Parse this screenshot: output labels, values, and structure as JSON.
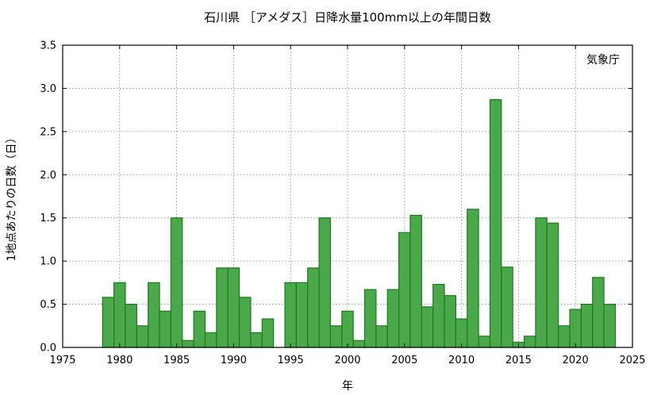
{
  "chart_data": {
    "type": "bar",
    "title": "石川県 ［アメダス］日降水量100mm以上の年間日数",
    "xlabel": "年",
    "ylabel": "1地点あたりの日数（日）",
    "credit": "気象庁",
    "xlim": [
      1975,
      2025
    ],
    "ylim": [
      0,
      3.5
    ],
    "xticks": [
      1975,
      1980,
      1985,
      1990,
      1995,
      2000,
      2005,
      2010,
      2015,
      2020,
      2025
    ],
    "yticks": [
      "0.0",
      "0.5",
      "1.0",
      "1.5",
      "2.0",
      "2.5",
      "3.0",
      "3.5"
    ],
    "grid": true,
    "x": [
      1979,
      1980,
      1981,
      1982,
      1983,
      1984,
      1985,
      1986,
      1987,
      1988,
      1989,
      1990,
      1991,
      1992,
      1993,
      1994,
      1995,
      1996,
      1997,
      1998,
      1999,
      2000,
      2001,
      2002,
      2003,
      2004,
      2005,
      2006,
      2007,
      2008,
      2009,
      2010,
      2011,
      2012,
      2013,
      2014,
      2015,
      2016,
      2017,
      2018,
      2019,
      2020,
      2021,
      2022,
      2023
    ],
    "values": [
      0.58,
      0.75,
      0.5,
      0.25,
      0.75,
      0.42,
      1.5,
      0.08,
      0.42,
      0.17,
      0.92,
      0.92,
      0.58,
      0.17,
      0.33,
      0.0,
      0.75,
      0.75,
      0.92,
      1.5,
      0.25,
      0.42,
      0.08,
      0.67,
      0.25,
      0.67,
      1.33,
      1.53,
      0.47,
      0.73,
      0.6,
      0.33,
      1.6,
      0.13,
      2.87,
      0.93,
      0.06,
      0.13,
      1.5,
      1.44,
      0.25,
      0.44,
      0.5,
      0.81,
      0.5
    ],
    "colors": {
      "bar_fill": "#4aa84a",
      "bar_stroke": "#1a7d1a"
    }
  }
}
